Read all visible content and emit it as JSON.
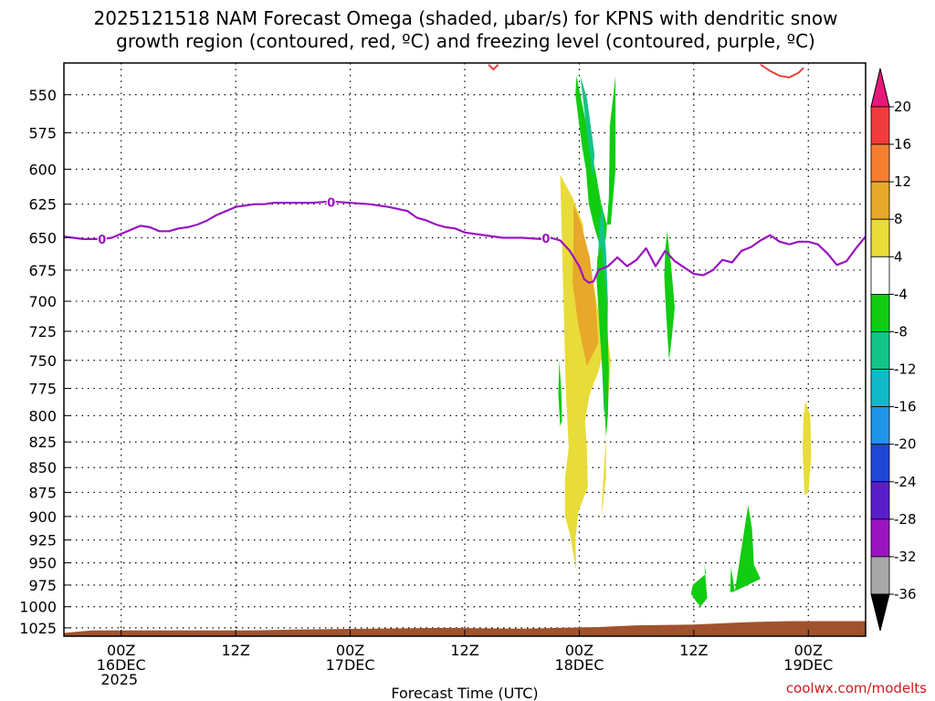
{
  "chart_data": {
    "type": "contour",
    "title_line1": "2025121518 NAM Forecast Omega (shaded, μbar/s) for KPNS with dendritic snow",
    "title_line2": "growth region (contoured, red, ºC) and freezing level (contoured, purple, ºC)",
    "xlabel": "Forecast Time (UTC)",
    "watermark": "coolwx.com/modelts",
    "x_unit": "hours since 2025-12-15 18Z",
    "xlim": [
      0,
      84
    ],
    "y_ticks": [
      "550",
      "575",
      "600",
      "625",
      "650",
      "675",
      "700",
      "725",
      "750",
      "775",
      "800",
      "825",
      "850",
      "875",
      "900",
      "925",
      "950",
      "975",
      "1000",
      "1025"
    ],
    "ylim_hpa": [
      530,
      1035
    ],
    "x_ticks": [
      {
        "hour": 6,
        "lines": [
          "00Z",
          "16DEC",
          "2025"
        ]
      },
      {
        "hour": 18,
        "lines": [
          "12Z"
        ]
      },
      {
        "hour": 30,
        "lines": [
          "00Z",
          "17DEC"
        ]
      },
      {
        "hour": 42,
        "lines": [
          "12Z"
        ]
      },
      {
        "hour": 54,
        "lines": [
          "00Z",
          "18DEC"
        ]
      },
      {
        "hour": 66,
        "lines": [
          "12Z"
        ]
      },
      {
        "hour": 78,
        "lines": [
          "00Z",
          "19DEC"
        ]
      }
    ],
    "colorbar": {
      "labels": [
        "20",
        "16",
        "12",
        "8",
        "4",
        "-4",
        "-8",
        "-12",
        "-16",
        "-20",
        "-24",
        "-28",
        "-32",
        "-36"
      ],
      "colors": [
        "#f03c3c",
        "#f57f30",
        "#e8a82a",
        "#e8dc3a",
        "#ffffff",
        "#12cc12",
        "#12c487",
        "#0fb9c8",
        "#1f94e8",
        "#2046d6",
        "#5a1ec8",
        "#9a14c2",
        "#a8a8a8"
      ],
      "top_arrow_color": "#e6197a",
      "bottom_arrow_color": "#000000"
    },
    "freezing_level": {
      "label": "0",
      "color": "#9a14c2",
      "hour": [
        0,
        2,
        4,
        5,
        6,
        7,
        8,
        9,
        10,
        11,
        12,
        13,
        14,
        15,
        16,
        17,
        18,
        19,
        20,
        21,
        22,
        23,
        24,
        26,
        28,
        30,
        32,
        34,
        36,
        37,
        38,
        39,
        40,
        41,
        42,
        43,
        44,
        46,
        48,
        50,
        51,
        52,
        53,
        54,
        54.5,
        55,
        55.5,
        56,
        57,
        58,
        59,
        60,
        61,
        62,
        63,
        64,
        65,
        66,
        67,
        68,
        69,
        70,
        71,
        72,
        73,
        74,
        75,
        76,
        77,
        78,
        79,
        80,
        81,
        82,
        83,
        84
      ],
      "hpa": [
        649,
        651,
        651,
        650,
        647,
        644,
        641,
        642,
        645,
        645,
        643,
        642,
        640,
        637,
        633,
        630,
        627,
        626,
        625,
        625,
        624,
        624,
        624,
        624,
        623,
        624,
        625,
        627,
        630,
        635,
        637,
        640,
        642,
        643,
        646,
        647,
        648,
        650,
        650,
        651,
        650,
        652,
        660,
        672,
        682,
        685,
        684,
        675,
        672,
        665,
        672,
        667,
        658,
        672,
        660,
        668,
        673,
        678,
        679,
        675,
        667,
        669,
        660,
        657,
        652,
        648,
        653,
        655,
        653,
        653,
        655,
        662,
        671,
        668,
        658,
        649
      ]
    },
    "dgz_contours": [
      {
        "hour": [
          44.5,
          45,
          45.5
        ],
        "hpa": [
          531,
          534,
          531
        ]
      },
      {
        "hour": [
          73,
          74,
          75,
          76,
          77,
          77.5
        ],
        "hpa": [
          531,
          535,
          538,
          539,
          536,
          533
        ]
      }
    ],
    "omega_regions": [
      {
        "value": 6,
        "hour": [
          52,
          53.3,
          54.4,
          54.6,
          55.5,
          55.8,
          56.3,
          56.8,
          56.0,
          55.1,
          54.6,
          54.8,
          54.9,
          53.9,
          53.6,
          53.7,
          53.0,
          52.5,
          52.5,
          52.9,
          52.6
        ],
        "hpa": [
          604,
          620,
          640,
          664,
          685,
          700,
          720,
          735,
          760,
          780,
          805,
          830,
          870,
          895,
          925,
          960,
          918,
          900,
          860,
          830,
          780
        ]
      },
      {
        "value": 6,
        "hour": [
          56.8,
          57.3,
          56.8,
          56.4,
          56.3,
          56.8
        ],
        "hpa": [
          720,
          750,
          820,
          880,
          900,
          860
        ]
      },
      {
        "value": 6,
        "hour": [
          53.4,
          53.6,
          53.4,
          53.2,
          53.3
        ],
        "hpa": [
          865,
          880,
          905,
          888,
          870
        ]
      },
      {
        "value": 6,
        "hour": [
          77.7,
          78.2,
          78.3,
          78.0,
          77.6,
          77.4,
          77.5
        ],
        "hpa": [
          787,
          800,
          840,
          875,
          878,
          830,
          800
        ]
      },
      {
        "value": 10,
        "hour": [
          53.4,
          54.2,
          55.1,
          55.7,
          56.0,
          54.8,
          53.9,
          53.3,
          53.4
        ],
        "hpa": [
          625,
          640,
          665,
          700,
          735,
          755,
          720,
          685,
          650
        ]
      },
      {
        "value": -6,
        "hour": [
          53.7,
          54.1,
          54.6,
          55.2,
          55.8,
          56.3,
          56.9,
          57.3,
          57.8,
          57.8,
          57.2,
          57.1,
          56.8,
          56.3,
          55.5,
          55.0,
          54.7,
          54.3,
          54.0,
          53.8,
          53.6
        ],
        "hpa": [
          538,
          550,
          565,
          585,
          605,
          625,
          640,
          640,
          600,
          538,
          570,
          620,
          650,
          660,
          640,
          625,
          600,
          585,
          570,
          560,
          550
        ]
      },
      {
        "value": -10,
        "hour": [
          54.1,
          54.8,
          55.3,
          55.6,
          55.4,
          54.9
        ],
        "hpa": [
          538,
          552,
          575,
          590,
          605,
          580
        ]
      },
      {
        "value": -10,
        "hour": [
          56.4,
          56.8,
          57.0,
          56.9,
          56.6,
          56.2,
          55.9,
          56.1
        ],
        "hpa": [
          625,
          660,
          700,
          760,
          800,
          720,
          680,
          640
        ]
      },
      {
        "value": -6,
        "hour": [
          56.3,
          56.9,
          57.1,
          57.0,
          56.8,
          56.5,
          56.1,
          55.8,
          55.9
        ],
        "hpa": [
          655,
          700,
          760,
          800,
          820,
          770,
          720,
          680,
          665
        ]
      },
      {
        "value": -6,
        "hour": [
          63.2,
          63.6,
          64.0,
          63.7,
          63.4,
          63.1,
          62.9,
          63.0
        ],
        "hpa": [
          645,
          670,
          705,
          730,
          750,
          710,
          680,
          660
        ]
      },
      {
        "value": -6,
        "hour": [
          51.9,
          52.1,
          52.2,
          52.0,
          51.8
        ],
        "hpa": [
          750,
          775,
          805,
          810,
          780
        ]
      },
      {
        "value": -6,
        "hour": [
          66.2,
          67.3,
          67.1,
          67.4,
          66.7,
          66.2,
          65.7,
          65.9
        ],
        "hpa": [
          972,
          962,
          952,
          990,
          1000,
          993,
          985,
          975
        ]
      },
      {
        "value": -6,
        "hour": [
          70.3,
          71.7,
          72.1,
          72.3,
          73.0,
          70.1,
          69.8,
          69.9
        ],
        "hpa": [
          982,
          888,
          913,
          952,
          968,
          983,
          983,
          955
        ]
      }
    ],
    "ground_fill_color": "#a0522d"
  }
}
